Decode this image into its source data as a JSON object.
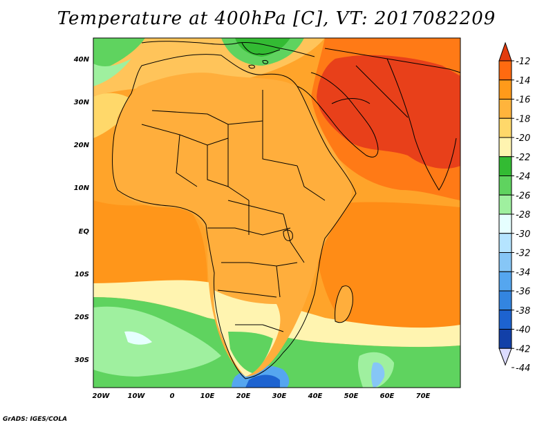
{
  "title": "Temperature at 400hPa [C], VT: 2017082209",
  "credit": "GrADS: IGES/COLA",
  "lat_labels": [
    "40N",
    "30N",
    "20N",
    "10N",
    "EQ",
    "10S",
    "20S",
    "30S"
  ],
  "lon_labels": [
    "20W",
    "10W",
    "0",
    "10E",
    "20E",
    "30E",
    "40E",
    "50E",
    "60E",
    "70E"
  ],
  "colorbar": {
    "labels": [
      "-12",
      "-14",
      "-16",
      "-18",
      "-20",
      "-22",
      "-24",
      "-26",
      "-28",
      "-30",
      "-32",
      "-34",
      "-36",
      "-38",
      "-40",
      "-42",
      "-44"
    ],
    "colors": [
      "#e33c0f",
      "#ff6a10",
      "#ff9a1a",
      "#ffb43c",
      "#ffd86a",
      "#fff4b0",
      "#33bb33",
      "#5fd35f",
      "#9ff09f",
      "#e6ffff",
      "#b5e4ff",
      "#86c6f6",
      "#55a6ef",
      "#3385e0",
      "#1d63d0",
      "#1240a8",
      "#08106a"
    ]
  },
  "colors": {
    "warm_core": "#e8401a",
    "ocean_orange": "#ff9a1a",
    "land_orange": "#ffae3c",
    "cool_green": "#5fd35f",
    "cold_blue": "#3385e0"
  }
}
